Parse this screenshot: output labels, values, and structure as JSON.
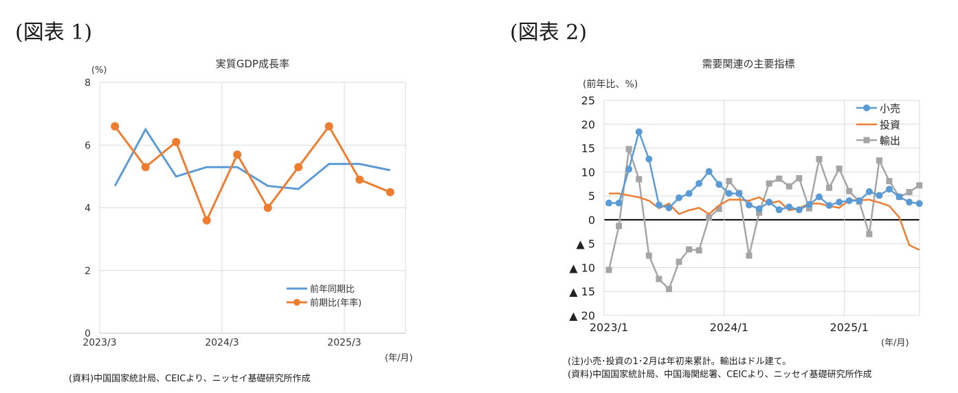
{
  "figure1": {
    "label": "(図表 1)",
    "source": "(資料)中国国家統計局、CEICより、ニッセイ基礎研究所作成"
  },
  "figure2": {
    "label": "(図表 2)",
    "note": "(注)小売･投資の1･2月は年初来累計。輸出はドル建て。",
    "source": "(資料)中国国家統計局、中国海関総署、CEICより、ニッセイ基礎研究所作成"
  },
  "chart_data": [
    {
      "type": "line",
      "title": "実質GDP成長率",
      "yunit": "(%)",
      "xunit": "(年/月)",
      "ylim": [
        0,
        8
      ],
      "yticks": [
        0,
        2,
        4,
        6,
        8
      ],
      "x": [
        "2023/3",
        "2023/6",
        "2023/9",
        "2023/12",
        "2024/3",
        "2024/6",
        "2024/9",
        "2024/12",
        "2025/3",
        "2025/6"
      ],
      "xtick_labels": [
        "2023/3",
        "2024/3",
        "2025/3"
      ],
      "legend_position": "bottom-right",
      "grid": true,
      "series": [
        {
          "name": "前年同期比",
          "color": "#5b9bd5",
          "markers": false,
          "values": [
            4.7,
            6.5,
            5.0,
            5.3,
            5.3,
            4.7,
            4.6,
            5.4,
            5.4,
            5.2
          ]
        },
        {
          "name": "前期比(年率)",
          "color": "#ed7d31",
          "markers": true,
          "values": [
            6.6,
            5.3,
            6.1,
            3.6,
            5.7,
            4.0,
            5.3,
            6.6,
            4.9,
            4.5
          ]
        }
      ]
    },
    {
      "type": "line",
      "title": "需要関連の主要指標",
      "yunit": "(前年比、%)",
      "xunit": "(年/月)",
      "ylim": [
        -20,
        25
      ],
      "yticks": [
        25,
        20,
        15,
        10,
        5,
        0,
        -5,
        -10,
        -15,
        -20
      ],
      "ytick_labels": [
        "25",
        "20",
        "15",
        "10",
        "5",
        "0",
        "▲ 5",
        "▲ 10",
        "▲ 15",
        "▲ 20"
      ],
      "x_start": "2023/1",
      "xtick_labels": [
        "2023/1",
        "2024/1",
        "2025/1"
      ],
      "legend_position": "top-right",
      "grid": true,
      "series": [
        {
          "name": "小売",
          "color": "#5b9bd5",
          "marker": "circle",
          "values": [
            3.5,
            3.5,
            10.6,
            18.4,
            12.7,
            3.1,
            2.5,
            4.6,
            5.5,
            7.6,
            10.1,
            7.4,
            5.5,
            5.5,
            3.1,
            2.3,
            3.7,
            2.1,
            2.7,
            2.1,
            3.2,
            4.8,
            3.0,
            3.7,
            4.0,
            4.0,
            5.9,
            5.1,
            6.4,
            4.8,
            3.7,
            3.4
          ]
        },
        {
          "name": "投資",
          "color": "#ed7d31",
          "marker": "none",
          "values": [
            5.5,
            5.5,
            5.1,
            4.7,
            4.0,
            2.4,
            3.4,
            1.2,
            2.0,
            2.5,
            1.2,
            3.0,
            4.2,
            4.2,
            4.0,
            4.7,
            3.4,
            3.9,
            2.0,
            2.4,
            3.4,
            3.4,
            2.9,
            2.5,
            4.1,
            4.1,
            4.2,
            3.6,
            2.9,
            0.5,
            -5.3,
            -6.3
          ]
        },
        {
          "name": "輸出",
          "color": "#a5a5a5",
          "marker": "square",
          "values": [
            -10.5,
            -1.3,
            14.8,
            8.5,
            -7.5,
            -12.4,
            -14.5,
            -8.8,
            -6.2,
            -6.4,
            0.5,
            2.3,
            8.1,
            5.6,
            -7.5,
            1.5,
            7.6,
            8.6,
            7.0,
            8.7,
            2.4,
            12.7,
            6.7,
            10.7,
            6.0,
            3.8,
            -3.0,
            12.4,
            8.1,
            4.8,
            5.8,
            7.2
          ]
        }
      ]
    }
  ]
}
